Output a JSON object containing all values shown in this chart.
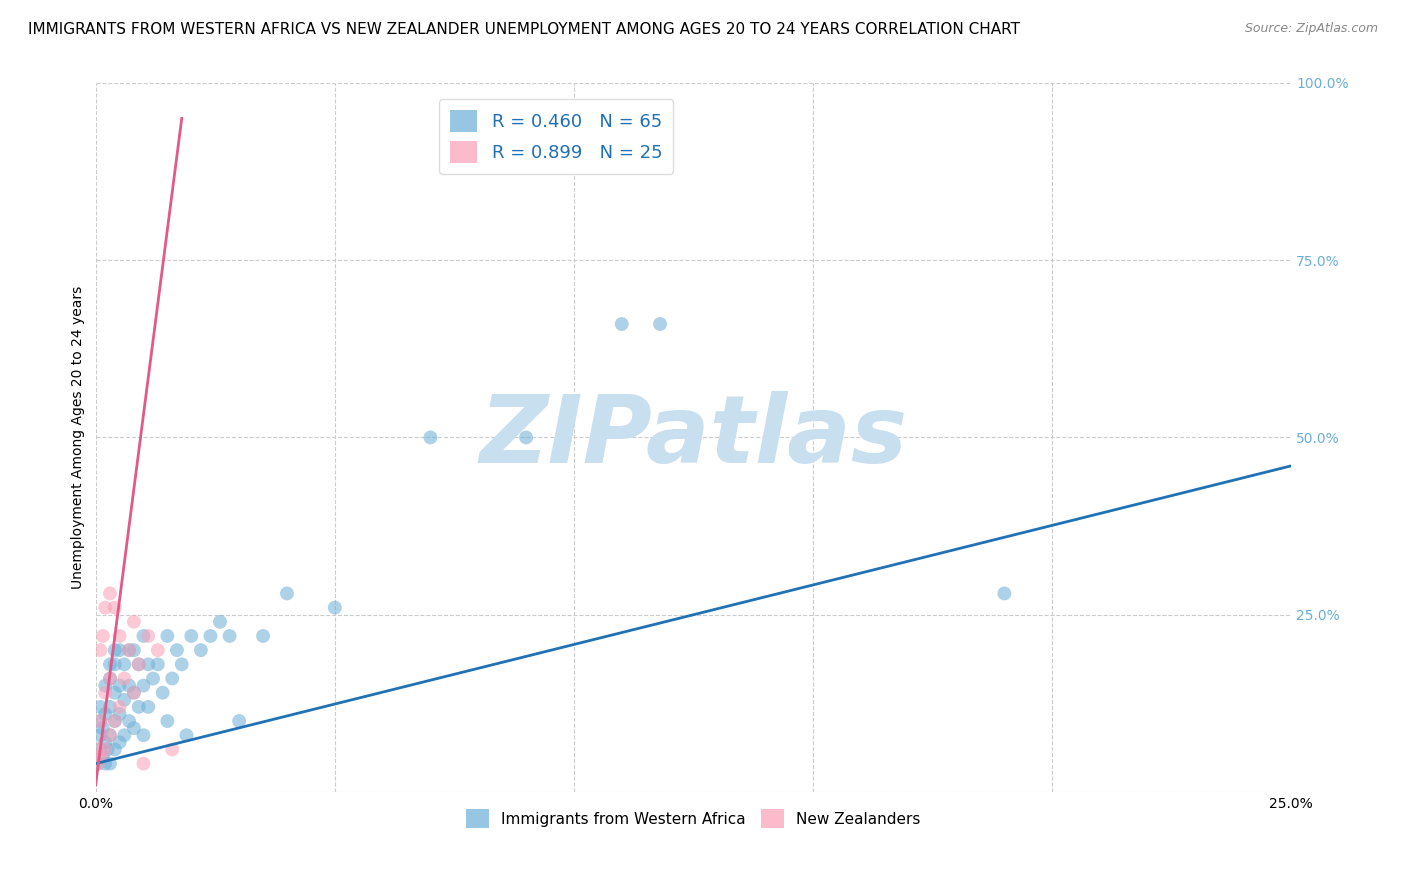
{
  "title": "IMMIGRANTS FROM WESTERN AFRICA VS NEW ZEALANDER UNEMPLOYMENT AMONG AGES 20 TO 24 YEARS CORRELATION CHART",
  "source": "Source: ZipAtlas.com",
  "ylabel": "Unemployment Among Ages 20 to 24 years",
  "xlim": [
    0.0,
    0.25
  ],
  "ylim": [
    0.0,
    1.0
  ],
  "yticks": [
    0.0,
    0.25,
    0.5,
    0.75,
    1.0
  ],
  "ytick_labels_right": [
    "",
    "25.0%",
    "50.0%",
    "75.0%",
    "100.0%"
  ],
  "xtick_positions": [
    0.0,
    0.05,
    0.1,
    0.15,
    0.2,
    0.25
  ],
  "xtick_labels": [
    "0.0%",
    "",
    "",
    "",
    "",
    "25.0%"
  ],
  "blue_R": 0.46,
  "blue_N": 65,
  "pink_R": 0.899,
  "pink_N": 25,
  "blue_color": "#6baed6",
  "pink_color": "#fa9fb5",
  "blue_line_color": "#2171b5",
  "pink_line_color": "#e05a8a",
  "legend_label_blue": "Immigrants from Western Africa",
  "legend_label_pink": "New Zealanders",
  "watermark": "ZIPatlas",
  "watermark_color": "#c8dff0",
  "title_fontsize": 11,
  "right_tick_color": "#6baed6",
  "blue_scatter_x": [
    0.0005,
    0.001,
    0.001,
    0.001,
    0.001,
    0.0015,
    0.0015,
    0.002,
    0.002,
    0.002,
    0.002,
    0.0025,
    0.003,
    0.003,
    0.003,
    0.003,
    0.003,
    0.004,
    0.004,
    0.004,
    0.004,
    0.004,
    0.005,
    0.005,
    0.005,
    0.005,
    0.006,
    0.006,
    0.006,
    0.007,
    0.007,
    0.007,
    0.008,
    0.008,
    0.008,
    0.009,
    0.009,
    0.01,
    0.01,
    0.01,
    0.011,
    0.011,
    0.012,
    0.013,
    0.014,
    0.015,
    0.015,
    0.016,
    0.017,
    0.018,
    0.019,
    0.02,
    0.022,
    0.024,
    0.026,
    0.028,
    0.03,
    0.035,
    0.04,
    0.05,
    0.07,
    0.09,
    0.11,
    0.118,
    0.19
  ],
  "blue_scatter_y": [
    0.04,
    0.06,
    0.08,
    0.1,
    0.12,
    0.05,
    0.09,
    0.04,
    0.07,
    0.11,
    0.15,
    0.06,
    0.04,
    0.08,
    0.12,
    0.16,
    0.18,
    0.06,
    0.1,
    0.14,
    0.18,
    0.2,
    0.07,
    0.11,
    0.15,
    0.2,
    0.08,
    0.13,
    0.18,
    0.1,
    0.15,
    0.2,
    0.09,
    0.14,
    0.2,
    0.12,
    0.18,
    0.08,
    0.15,
    0.22,
    0.12,
    0.18,
    0.16,
    0.18,
    0.14,
    0.1,
    0.22,
    0.16,
    0.2,
    0.18,
    0.08,
    0.22,
    0.2,
    0.22,
    0.24,
    0.22,
    0.1,
    0.22,
    0.28,
    0.26,
    0.5,
    0.5,
    0.66,
    0.66,
    0.28
  ],
  "pink_scatter_x": [
    0.0005,
    0.0005,
    0.001,
    0.001,
    0.001,
    0.0015,
    0.002,
    0.002,
    0.002,
    0.003,
    0.003,
    0.003,
    0.004,
    0.004,
    0.005,
    0.005,
    0.006,
    0.007,
    0.008,
    0.008,
    0.009,
    0.01,
    0.011,
    0.013,
    0.016
  ],
  "pink_scatter_y": [
    0.04,
    0.06,
    0.05,
    0.1,
    0.2,
    0.22,
    0.06,
    0.14,
    0.26,
    0.08,
    0.16,
    0.28,
    0.1,
    0.26,
    0.12,
    0.22,
    0.16,
    0.2,
    0.14,
    0.24,
    0.18,
    0.04,
    0.22,
    0.2,
    0.06
  ],
  "blue_trendline_x": [
    0.0,
    0.25
  ],
  "blue_trendline_y": [
    0.04,
    0.46
  ],
  "pink_trendline_x": [
    0.0,
    0.018
  ],
  "pink_trendline_y": [
    0.01,
    0.95
  ]
}
